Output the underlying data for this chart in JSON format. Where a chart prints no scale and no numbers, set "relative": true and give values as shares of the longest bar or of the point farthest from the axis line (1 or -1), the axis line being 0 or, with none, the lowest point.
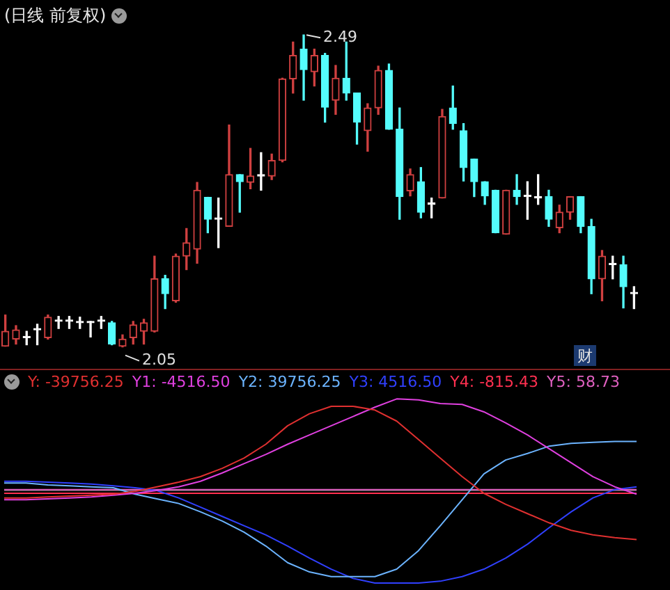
{
  "chart_data": [
    {
      "type": "candlestick",
      "title": "(日线 前复权)",
      "categories": [
        null,
        null,
        null,
        null,
        null,
        null,
        null,
        null,
        null,
        null,
        null,
        null,
        null,
        null,
        null,
        null,
        null,
        null,
        null,
        null,
        null,
        null,
        null,
        null,
        null,
        null,
        null,
        null,
        null,
        null,
        null,
        null,
        null,
        null,
        null,
        null,
        null,
        null,
        null,
        null,
        null,
        null,
        null,
        null,
        null,
        null,
        null,
        null,
        null,
        null,
        null,
        null,
        null,
        null,
        null,
        null,
        null,
        null,
        null,
        null
      ],
      "ohlc": [
        [
          2.051,
          2.095,
          2.051,
          2.072
        ],
        [
          2.061,
          2.08,
          2.054,
          2.074
        ],
        [
          2.063,
          2.072,
          2.053,
          2.063
        ],
        [
          2.074,
          2.082,
          2.053,
          2.074
        ],
        [
          2.063,
          2.095,
          2.061,
          2.092
        ],
        [
          2.086,
          2.093,
          2.076,
          2.086
        ],
        [
          2.086,
          2.093,
          2.076,
          2.086
        ],
        [
          2.084,
          2.092,
          2.076,
          2.084
        ],
        [
          2.084,
          2.086,
          2.064,
          2.084
        ],
        [
          2.086,
          2.093,
          2.076,
          2.086
        ],
        [
          2.084,
          2.086,
          2.053,
          2.054
        ],
        [
          2.051,
          2.067,
          2.05,
          2.061
        ],
        [
          2.063,
          2.086,
          2.054,
          2.081
        ],
        [
          2.072,
          2.089,
          2.054,
          2.084
        ],
        [
          2.072,
          2.178,
          2.071,
          2.146
        ],
        [
          2.146,
          2.151,
          2.104,
          2.125
        ],
        [
          2.115,
          2.181,
          2.113,
          2.178
        ],
        [
          2.178,
          2.217,
          2.159,
          2.197
        ],
        [
          2.188,
          2.282,
          2.168,
          2.271
        ],
        [
          2.261,
          2.261,
          2.211,
          2.23
        ],
        [
          2.23,
          2.26,
          2.19,
          2.23
        ],
        [
          2.22,
          2.363,
          2.22,
          2.293
        ],
        [
          2.293,
          2.293,
          2.24,
          2.283
        ],
        [
          2.282,
          2.33,
          2.273,
          2.291
        ],
        [
          2.291,
          2.324,
          2.271,
          2.291
        ],
        [
          2.291,
          2.322,
          2.286,
          2.313
        ],
        [
          2.313,
          2.429,
          2.311,
          2.428
        ],
        [
          2.428,
          2.48,
          2.408,
          2.461
        ],
        [
          2.47,
          2.49,
          2.398,
          2.441
        ],
        [
          2.438,
          2.47,
          2.418,
          2.461
        ],
        [
          2.461,
          2.464,
          2.367,
          2.388
        ],
        [
          2.398,
          2.447,
          2.378,
          2.429
        ],
        [
          2.429,
          2.48,
          2.398,
          2.408
        ],
        [
          2.408,
          2.408,
          2.336,
          2.367
        ],
        [
          2.355,
          2.393,
          2.326,
          2.387
        ],
        [
          2.387,
          2.446,
          2.378,
          2.44
        ],
        [
          2.44,
          2.449,
          2.357,
          2.357
        ],
        [
          2.357,
          2.387,
          2.23,
          2.262
        ],
        [
          2.27,
          2.301,
          2.263,
          2.293
        ],
        [
          2.283,
          2.303,
          2.232,
          2.24
        ],
        [
          2.251,
          2.26,
          2.232,
          2.251
        ],
        [
          2.26,
          2.385,
          2.26,
          2.375
        ],
        [
          2.387,
          2.418,
          2.357,
          2.365
        ],
        [
          2.355,
          2.365,
          2.284,
          2.303
        ],
        [
          2.315,
          2.315,
          2.262,
          2.283
        ],
        [
          2.283,
          2.283,
          2.251,
          2.263
        ],
        [
          2.271,
          2.271,
          2.211,
          2.211
        ],
        [
          2.209,
          2.271,
          2.209,
          2.271
        ],
        [
          2.271,
          2.293,
          2.251,
          2.262
        ],
        [
          2.262,
          2.283,
          2.23,
          2.262
        ],
        [
          2.26,
          2.293,
          2.251,
          2.26
        ],
        [
          2.262,
          2.271,
          2.22,
          2.23
        ],
        [
          2.218,
          2.25,
          2.211,
          2.24
        ],
        [
          2.24,
          2.262,
          2.23,
          2.262
        ],
        [
          2.262,
          2.262,
          2.211,
          2.22
        ],
        [
          2.22,
          2.23,
          2.125,
          2.146
        ],
        [
          2.146,
          2.186,
          2.115,
          2.178
        ],
        [
          2.166,
          2.178,
          2.146,
          2.166
        ],
        [
          2.166,
          2.178,
          2.105,
          2.135
        ],
        [
          2.125,
          2.135,
          2.104,
          2.125
        ]
      ],
      "colors": [
        "#d04040",
        "#d04040",
        "#ffffff",
        "#ffffff",
        "#d04040",
        "#ffffff",
        "#ffffff",
        "#ffffff",
        "#ffffff",
        "#ffffff",
        "#54fcfc",
        "#d04040",
        "#d04040",
        "#d04040",
        "#d04040",
        "#54fcfc",
        "#d04040",
        "#d04040",
        "#d04040",
        "#54fcfc",
        "#ffffff",
        "#d04040",
        "#54fcfc",
        "#d04040",
        "#ffffff",
        "#d04040",
        "#d04040",
        "#d04040",
        "#54fcfc",
        "#d04040",
        "#54fcfc",
        "#d04040",
        "#54fcfc",
        "#54fcfc",
        "#d04040",
        "#d04040",
        "#54fcfc",
        "#54fcfc",
        "#d04040",
        "#54fcfc",
        "#ffffff",
        "#d04040",
        "#54fcfc",
        "#54fcfc",
        "#54fcfc",
        "#54fcfc",
        "#54fcfc",
        "#d04040",
        "#54fcfc",
        "#ffffff",
        "#ffffff",
        "#54fcfc",
        "#d04040",
        "#d04040",
        "#54fcfc",
        "#54fcfc",
        "#d04040",
        "#ffffff",
        "#54fcfc",
        "#ffffff"
      ],
      "tick_labels": false,
      "annotations": [
        "2.49",
        "2.05",
        "财"
      ]
    },
    {
      "type": "line",
      "relative": true,
      "legend": "top left",
      "tick_labels": false,
      "categories": [
        null,
        null,
        null,
        null,
        null,
        null,
        null,
        null,
        null,
        null,
        null,
        null,
        null,
        null,
        null,
        null,
        null,
        null,
        null,
        null,
        null,
        null,
        null,
        null,
        null,
        null,
        null,
        null,
        null,
        null
      ],
      "series": [
        {
          "name": "Y: -39756.25",
          "color": "#e03030",
          "values": [
            -0.08,
            -0.08,
            -0.07,
            -0.06,
            -0.05,
            -0.04,
            -0.01,
            0.04,
            0.09,
            0.15,
            0.24,
            0.35,
            0.5,
            0.7,
            0.83,
            0.91,
            0.91,
            0.87,
            0.75,
            0.55,
            0.35,
            0.15,
            -0.03,
            -0.15,
            -0.25,
            -0.35,
            -0.43,
            -0.48,
            -0.51,
            -0.53
          ]
        },
        {
          "name": "Y1: -4516.50",
          "color": "#e040e0",
          "values": [
            -0.1,
            -0.1,
            -0.09,
            -0.08,
            -0.07,
            -0.05,
            -0.03,
            0,
            0.04,
            0.1,
            0.19,
            0.29,
            0.39,
            0.5,
            0.6,
            0.7,
            0.8,
            0.9,
            0.99,
            0.98,
            0.94,
            0.93,
            0.85,
            0.73,
            0.6,
            0.45,
            0.3,
            0.15,
            0.04,
            -0.04
          ]
        },
        {
          "name": "Y2: 39756.25",
          "color": "#6cb4ff",
          "values": [
            0.08,
            0.08,
            0.06,
            0.05,
            0.04,
            0.03,
            -0.04,
            -0.09,
            -0.14,
            -0.23,
            -0.33,
            -0.45,
            -0.6,
            -0.78,
            -0.88,
            -0.93,
            -0.93,
            -0.93,
            -0.85,
            -0.65,
            -0.38,
            -0.1,
            0.18,
            0.33,
            0.4,
            0.48,
            0.51,
            0.52,
            0.53,
            0.53
          ]
        },
        {
          "name": "Y3: 4516.50",
          "color": "#3040ff",
          "values": [
            0.1,
            0.1,
            0.09,
            0.08,
            0.07,
            0.05,
            0.03,
            0,
            -0.08,
            -0.18,
            -0.28,
            -0.38,
            -0.48,
            -0.6,
            -0.73,
            -0.85,
            -0.95,
            -1,
            -1,
            -1,
            -0.98,
            -0.93,
            -0.85,
            -0.73,
            -0.58,
            -0.4,
            -0.23,
            -0.08,
            0.01,
            0.04
          ]
        },
        {
          "name": "Y4: -815.43",
          "color": "#ff3050",
          "values": [
            -0.03,
            -0.03,
            -0.03,
            -0.03,
            -0.03,
            -0.03,
            -0.03,
            -0.03,
            -0.03,
            -0.03,
            -0.03,
            -0.03,
            -0.03,
            -0.03,
            -0.03,
            -0.03,
            -0.03,
            -0.03,
            -0.03,
            -0.03,
            -0.03,
            -0.03,
            -0.03,
            -0.03,
            -0.03,
            -0.03,
            -0.03,
            -0.03,
            -0.03,
            -0.03
          ]
        },
        {
          "name": "Y5: 58.73",
          "color": "#e060c0",
          "values": [
            0.01,
            0.01,
            0.01,
            0.01,
            0.01,
            0.01,
            0.01,
            0.01,
            0.01,
            0.01,
            0.01,
            0.01,
            0.01,
            0.01,
            0.01,
            0.01,
            0.01,
            0.01,
            0.01,
            0.01,
            0.01,
            0.01,
            0.01,
            0.01,
            0.01,
            0.01,
            0.01,
            0.01,
            0.01,
            0.01
          ]
        }
      ]
    }
  ]
}
